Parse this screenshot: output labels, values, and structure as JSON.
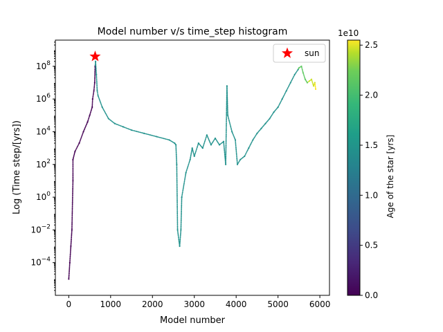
{
  "chart_data": {
    "type": "scatter",
    "title": "Model number v/s time_step histogram",
    "xlabel": "Model number",
    "ylabel": "Log (Time step/[yrs])",
    "xlim": [
      -320,
      6230
    ],
    "ylim_log10": [
      -6,
      9.6
    ],
    "y_scale": "log",
    "x_ticks": [
      0,
      1000,
      2000,
      3000,
      4000,
      5000,
      6000
    ],
    "y_ticks": [
      {
        "exp": -4,
        "label": "10",
        "sup": "−4"
      },
      {
        "exp": -2,
        "label": "10",
        "sup": "−2"
      },
      {
        "exp": 0,
        "label": "10",
        "sup": "0"
      },
      {
        "exp": 2,
        "label": "10",
        "sup": "2"
      },
      {
        "exp": 4,
        "label": "10",
        "sup": "4"
      },
      {
        "exp": 6,
        "label": "10",
        "sup": "6"
      },
      {
        "exp": 8,
        "label": "10",
        "sup": "8"
      }
    ],
    "grid": false,
    "legend": {
      "placement": "top-right",
      "entries": [
        {
          "name": "sun",
          "marker": "star",
          "color": "#ff0000"
        }
      ]
    },
    "sun_marker": {
      "x": 630,
      "log10_y": 8.6
    },
    "colorbar": {
      "label": "Age of the star [yrs]",
      "offset_text": "1e10",
      "range": [
        0,
        2.55
      ],
      "ticks": [
        0.0,
        0.5,
        1.0,
        1.5,
        2.0,
        2.5
      ],
      "tick_labels": [
        "0.0",
        "0.5",
        "1.0",
        "1.5",
        "2.0",
        "2.5"
      ],
      "colormap": "viridis"
    },
    "series": [
      {
        "color": "#440154",
        "points": [
          [
            0,
            -5
          ],
          [
            25,
            -4
          ],
          [
            50,
            -3
          ],
          [
            75,
            -2
          ],
          [
            100,
            1
          ],
          [
            100,
            2.3
          ],
          [
            150,
            2.8
          ],
          [
            250,
            3.3
          ],
          [
            350,
            4.0
          ],
          [
            450,
            4.6
          ],
          [
            500,
            5.0
          ],
          [
            560,
            5.5
          ],
          [
            570,
            6.0
          ],
          [
            600,
            6.5
          ],
          [
            620,
            7.0
          ],
          [
            630,
            8.0
          ]
        ]
      },
      {
        "color": "#21918c",
        "points": [
          [
            640,
            8.3
          ],
          [
            660,
            7.5
          ],
          [
            680,
            6.5
          ],
          [
            700,
            6.2
          ],
          [
            800,
            5.5
          ],
          [
            950,
            4.8
          ],
          [
            1100,
            4.5
          ],
          [
            1300,
            4.3
          ],
          [
            1500,
            4.1
          ],
          [
            1800,
            3.9
          ],
          [
            2100,
            3.7
          ],
          [
            2400,
            3.5
          ],
          [
            2530,
            3.3
          ],
          [
            2560,
            3.2
          ],
          [
            2580,
            2.0
          ],
          [
            2600,
            -2
          ],
          [
            2650,
            -3
          ],
          [
            2680,
            -2
          ],
          [
            2700,
            0
          ],
          [
            2800,
            1.5
          ],
          [
            2900,
            2.3
          ],
          [
            2950,
            3.0
          ],
          [
            3000,
            2.5
          ],
          [
            3100,
            3.3
          ],
          [
            3200,
            3.0
          ],
          [
            3300,
            3.8
          ],
          [
            3400,
            3.2
          ],
          [
            3500,
            3.6
          ],
          [
            3600,
            3.2
          ],
          [
            3700,
            3.4
          ],
          [
            3750,
            2.0
          ],
          [
            3780,
            6.8
          ],
          [
            3800,
            5.0
          ],
          [
            3900,
            4.0
          ],
          [
            3980,
            3.5
          ],
          [
            4030,
            2.0
          ],
          [
            4100,
            2.3
          ],
          [
            4200,
            2.5
          ],
          [
            4300,
            3.0
          ],
          [
            4400,
            3.5
          ],
          [
            4500,
            3.9
          ],
          [
            4600,
            4.2
          ],
          [
            4700,
            4.5
          ],
          [
            4800,
            4.8
          ],
          [
            4900,
            5.2
          ],
          [
            5000,
            5.5
          ],
          [
            5100,
            6.0
          ],
          [
            5200,
            6.5
          ],
          [
            5300,
            7.0
          ],
          [
            5400,
            7.5
          ],
          [
            5480,
            7.8
          ]
        ]
      },
      {
        "color": "#5ec962",
        "points": [
          [
            5500,
            7.9
          ],
          [
            5560,
            8.0
          ],
          [
            5600,
            7.6
          ],
          [
            5650,
            7.2
          ],
          [
            5700,
            7.0
          ]
        ]
      },
      {
        "color": "#c8e020",
        "points": [
          [
            5750,
            7.1
          ],
          [
            5800,
            7.2
          ],
          [
            5850,
            6.8
          ],
          [
            5880,
            7.0
          ]
        ]
      },
      {
        "color": "#fde725",
        "points": [
          [
            5900,
            6.6
          ]
        ]
      }
    ]
  }
}
